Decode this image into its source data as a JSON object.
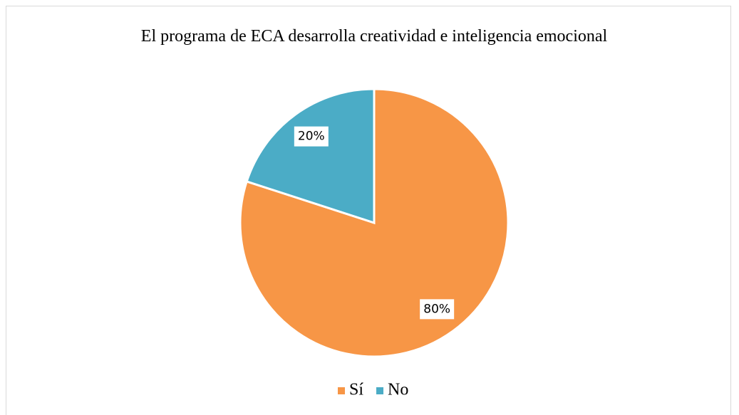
{
  "chart_data": {
    "type": "pie",
    "title": "El programa de ECA desarrolla creatividad e inteligencia emocional",
    "categories": [
      "Sí",
      "No"
    ],
    "values": [
      80,
      20
    ],
    "value_labels": [
      "80%",
      "20%"
    ],
    "colors": [
      "#f79646",
      "#4bacc6"
    ],
    "legend": "bottom"
  }
}
